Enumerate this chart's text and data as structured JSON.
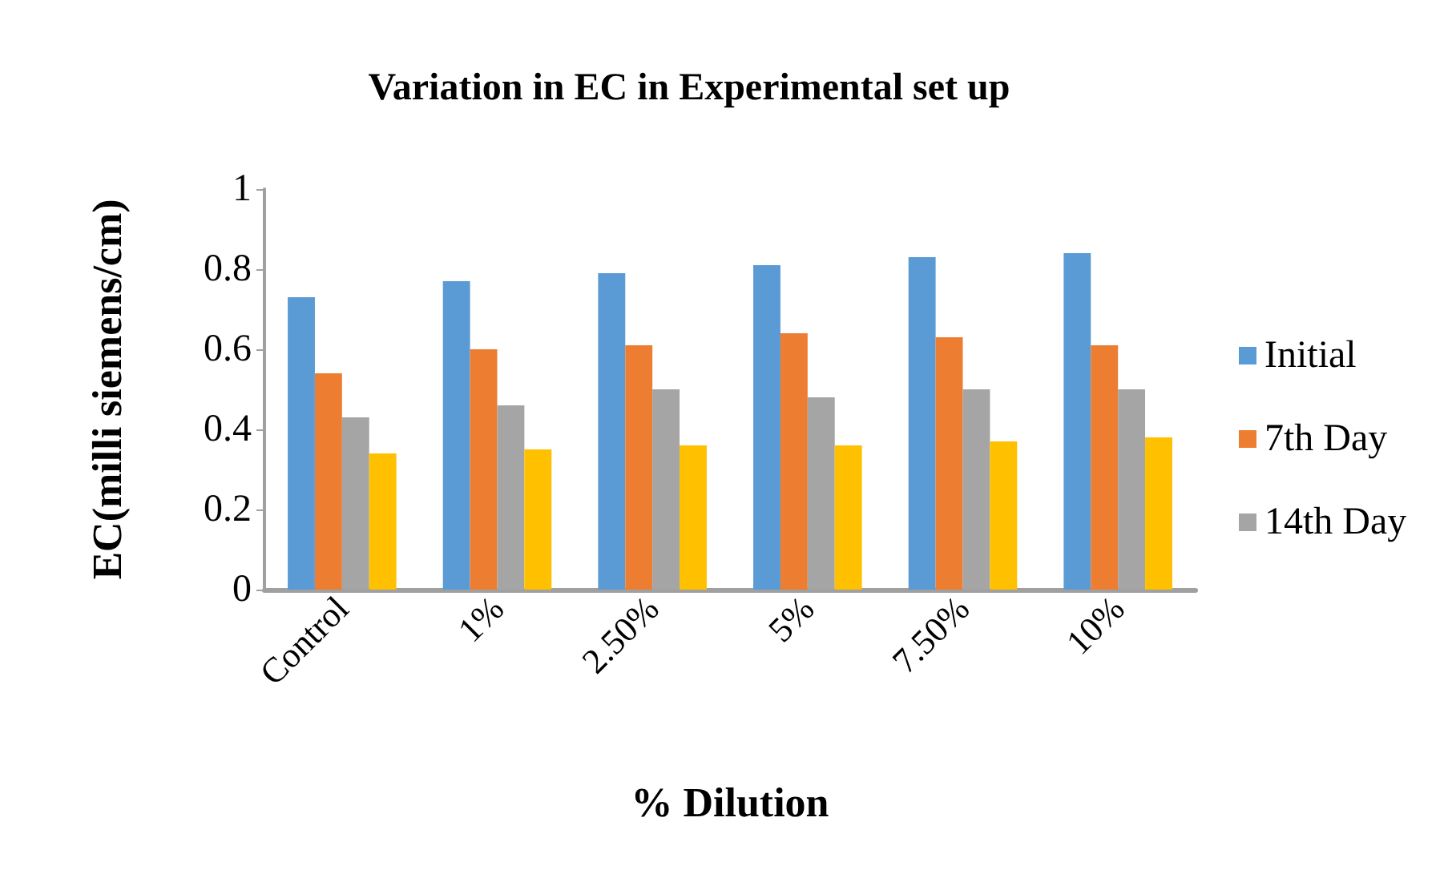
{
  "chart_data": {
    "type": "bar",
    "title": "Variation in EC in Experimental set up",
    "xlabel": "% Dilution",
    "ylabel": "EC(milli siemens/cm)",
    "categories": [
      "Control",
      "1%",
      "2.50%",
      "5%",
      "7.50%",
      "10%"
    ],
    "series": [
      {
        "name": "Initial",
        "color": "#5b9bd5",
        "values": [
          0.73,
          0.77,
          0.79,
          0.81,
          0.83,
          0.84
        ]
      },
      {
        "name": "7th Day",
        "color": "#ed7d31",
        "values": [
          0.54,
          0.6,
          0.61,
          0.64,
          0.63,
          0.61
        ]
      },
      {
        "name": "14th Day",
        "color": "#a5a5a5",
        "values": [
          0.43,
          0.46,
          0.5,
          0.48,
          0.5,
          0.5
        ]
      },
      {
        "color": "#ffc000",
        "values": [
          0.34,
          0.35,
          0.36,
          0.36,
          0.37,
          0.38
        ]
      }
    ],
    "ylim": [
      0,
      1
    ],
    "yticks": [
      0,
      0.2,
      0.4,
      0.6,
      0.8,
      1
    ],
    "grid": false,
    "legend": "right"
  }
}
